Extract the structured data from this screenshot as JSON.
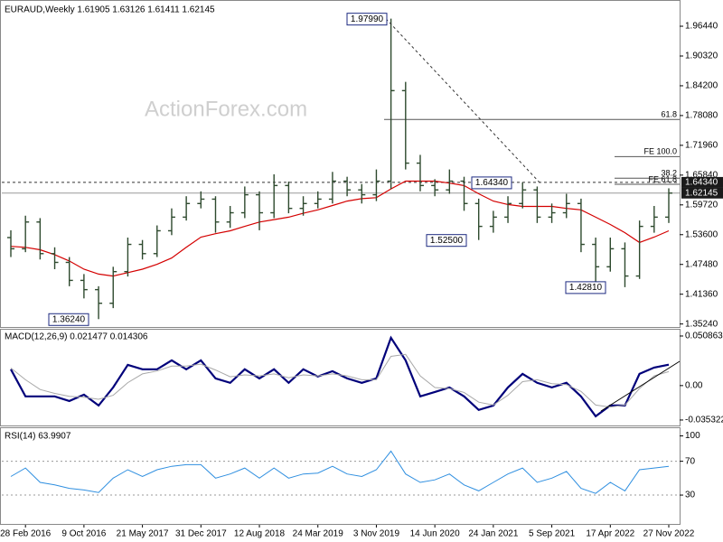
{
  "chart_data": [
    {
      "type": "ohlc",
      "title": "EURAUD,Weekly  1.61905 1.63126 1.61411 1.62145",
      "watermark": "ActionForex.com",
      "color": "#2e4a2e",
      "open": [
        1.53,
        1.507,
        1.562,
        1.497,
        1.479,
        1.442,
        1.423,
        1.395,
        1.46,
        1.516,
        1.497,
        1.544,
        1.572,
        1.6,
        1.609,
        1.562,
        1.581,
        1.618,
        1.581,
        1.637,
        1.59,
        1.6,
        1.609,
        1.646,
        1.628,
        1.618,
        1.646,
        1.832,
        1.683,
        1.637,
        1.628,
        1.646,
        1.6,
        1.553,
        1.572,
        1.6,
        1.628,
        1.572,
        1.581,
        1.6,
        1.516,
        1.47,
        1.507,
        1.451,
        1.553,
        1.572
      ],
      "high": [
        1.545,
        1.575,
        1.57,
        1.51,
        1.49,
        1.455,
        1.43,
        1.47,
        1.53,
        1.525,
        1.555,
        1.59,
        1.615,
        1.625,
        1.615,
        1.595,
        1.635,
        1.625,
        1.66,
        1.645,
        1.615,
        1.625,
        1.665,
        1.655,
        1.64,
        1.67,
        1.9799,
        1.85,
        1.7,
        1.65,
        1.67,
        1.655,
        1.61,
        1.585,
        1.615,
        1.6434,
        1.635,
        1.6,
        1.62,
        1.61,
        1.53,
        1.53,
        1.52,
        1.565,
        1.595,
        1.63126
      ],
      "low": [
        1.49,
        1.5,
        1.485,
        1.465,
        1.43,
        1.405,
        1.3624,
        1.385,
        1.45,
        1.485,
        1.49,
        1.535,
        1.565,
        1.59,
        1.54,
        1.55,
        1.57,
        1.545,
        1.57,
        1.58,
        1.575,
        1.59,
        1.6,
        1.615,
        1.6,
        1.605,
        1.63,
        1.67,
        1.625,
        1.615,
        1.62,
        1.585,
        1.525,
        1.54,
        1.56,
        1.59,
        1.56,
        1.56,
        1.57,
        1.5,
        1.44,
        1.46,
        1.4281,
        1.445,
        1.54,
        1.56
      ],
      "close": [
        1.507,
        1.562,
        1.497,
        1.479,
        1.442,
        1.423,
        1.395,
        1.46,
        1.516,
        1.497,
        1.544,
        1.572,
        1.6,
        1.609,
        1.562,
        1.581,
        1.618,
        1.581,
        1.637,
        1.59,
        1.6,
        1.609,
        1.646,
        1.628,
        1.618,
        1.646,
        1.832,
        1.683,
        1.637,
        1.628,
        1.646,
        1.6,
        1.553,
        1.572,
        1.6,
        1.628,
        1.572,
        1.581,
        1.6,
        1.516,
        1.47,
        1.507,
        1.451,
        1.553,
        1.572,
        1.62145
      ],
      "ma": {
        "color": "#d40000",
        "values": [
          1.512,
          1.51,
          1.505,
          1.495,
          1.482,
          1.465,
          1.455,
          1.451,
          1.458,
          1.465,
          1.475,
          1.488,
          1.51,
          1.531,
          1.538,
          1.544,
          1.553,
          1.562,
          1.567,
          1.572,
          1.58,
          1.587,
          1.596,
          1.605,
          1.61,
          1.612,
          1.63,
          1.646,
          1.646,
          1.646,
          1.642,
          1.637,
          1.62,
          1.605,
          1.598,
          1.594,
          1.594,
          1.594,
          1.59,
          1.587,
          1.572,
          1.557,
          1.54,
          1.52,
          1.531,
          1.544
        ]
      },
      "annotations": [
        {
          "label": "1.97990",
          "value": 1.9799
        },
        {
          "label": "1.36240",
          "value": 1.3624
        },
        {
          "label": "1.52500",
          "value": 1.525
        },
        {
          "label": "1.64340",
          "value": 1.6434
        },
        {
          "label": "1.42810",
          "value": 1.4281
        }
      ],
      "levels": [
        {
          "label": "61.8",
          "value": 1.7728
        },
        {
          "label": "FE 100.0",
          "value": 1.6965
        },
        {
          "label": "38.2",
          "value": 1.652
        },
        {
          "label": "FE 61.8",
          "value": 1.6396
        }
      ],
      "markers": [
        {
          "label": "1.64340",
          "value": 1.6434
        },
        {
          "label": "1.62145",
          "value": 1.62145
        }
      ],
      "ylim": [
        1.3462,
        2.009
      ],
      "yticks": [
        {
          "value": 1.9644,
          "label": "1.96440"
        },
        {
          "value": 1.9032,
          "label": "1.90320"
        },
        {
          "value": 1.842,
          "label": "1.84200"
        },
        {
          "value": 1.7808,
          "label": "1.78080"
        },
        {
          "value": 1.7196,
          "label": "1.71960"
        },
        {
          "value": 1.6584,
          "label": "1.65840"
        },
        {
          "value": 1.5972,
          "label": "1.59720"
        },
        {
          "value": 1.536,
          "label": "1.53600"
        },
        {
          "value": 1.4748,
          "label": "1.47480"
        },
        {
          "value": 1.4136,
          "label": "1.41360"
        },
        {
          "value": 1.3524,
          "label": "1.35240"
        }
      ]
    },
    {
      "type": "line",
      "title": "MACD(12,26,9) 0.021477 0.014306",
      "series": [
        {
          "color": "#00007a",
          "values": [
            0.0167,
            -0.0111,
            -0.0111,
            -0.0111,
            -0.0158,
            -0.0093,
            -0.0204,
            -0.0019,
            0.0213,
            0.0167,
            0.0167,
            0.0259,
            0.0167,
            0.0259,
            0.0074,
            0.0028,
            0.0167,
            0.0074,
            0.0167,
            0.0028,
            0.0167,
            0.0093,
            0.0148,
            0.0074,
            0.0028,
            0.0074,
            0.0491,
            0.0259,
            -0.0111,
            -0.0065,
            -0.0019,
            -0.0111,
            -0.025,
            -0.0204,
            -0.0019,
            0.012,
            0.0028,
            -0.0019,
            0.0028,
            -0.0111,
            -0.0315,
            -0.0204,
            -0.0204,
            0.012,
            0.0185,
            0.021477
          ]
        },
        {
          "color": "#a8a8a8",
          "values": [
            0.018,
            0.006,
            -0.004,
            -0.008,
            -0.011,
            -0.012,
            -0.014,
            -0.01,
            0.003,
            0.012,
            0.015,
            0.02,
            0.02,
            0.022,
            0.016,
            0.009,
            0.011,
            0.01,
            0.012,
            0.008,
            0.011,
            0.01,
            0.012,
            0.01,
            0.006,
            0.006,
            0.03,
            0.032,
            0.01,
            -0.002,
            -0.003,
            -0.007,
            -0.017,
            -0.02,
            -0.01,
            0.004,
            0.006,
            0.002,
            0.001,
            -0.006,
            -0.02,
            -0.022,
            -0.02,
            -0.003,
            0.01,
            0.014306
          ]
        }
      ],
      "ylim": [
        -0.04,
        0.0564
      ],
      "yticks": [
        0.050863,
        {
          "value": 0,
          "label": "0.00"
        },
        -0.035322
      ]
    },
    {
      "type": "line",
      "title": "RSI(14) 63.9907",
      "categories": [
        null,
        "28 Feb 2016",
        null,
        null,
        null,
        "9 Oct 2016",
        null,
        null,
        null,
        "21 May 2017",
        null,
        null,
        null,
        "31 Dec 2017",
        null,
        null,
        null,
        "12 Aug 2018",
        null,
        null,
        null,
        "24 Mar 2019",
        null,
        null,
        null,
        "3 Nov 2019",
        null,
        null,
        null,
        "14 Jun 2020",
        null,
        null,
        null,
        "24 Jan 2021",
        null,
        null,
        null,
        "5 Sep 2021",
        null,
        null,
        null,
        "17 Apr 2022",
        null,
        null,
        null,
        "27 Nov 2022"
      ],
      "series": [
        {
          "color": "#2f8fe0",
          "values": [
            52,
            62,
            45,
            42,
            38,
            36,
            33,
            50,
            60,
            52,
            60,
            64,
            66,
            66,
            50,
            55,
            62,
            50,
            62,
            50,
            55,
            56,
            64,
            55,
            52,
            60,
            82,
            55,
            45,
            48,
            55,
            42,
            35,
            45,
            55,
            62,
            45,
            50,
            58,
            38,
            32,
            45,
            35,
            60,
            62,
            63.9907
          ]
        }
      ],
      "hlines": [
        70,
        30
      ],
      "ylim": [
        -2,
        107
      ],
      "yticks": [
        100,
        70,
        30
      ]
    }
  ]
}
